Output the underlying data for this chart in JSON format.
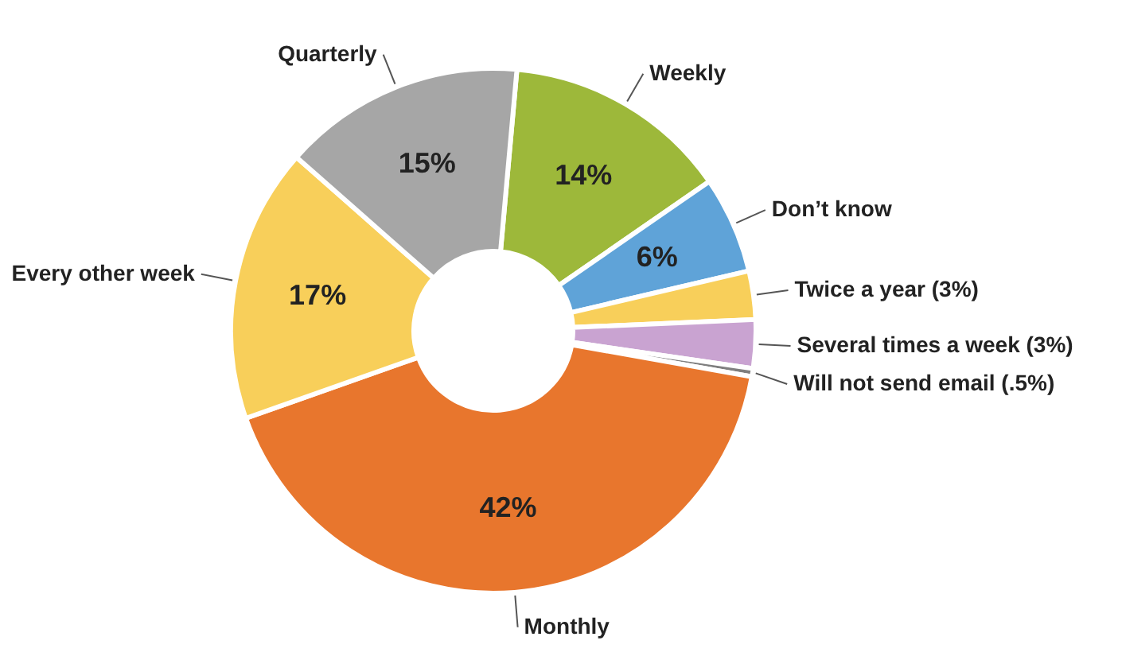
{
  "chart_data": {
    "type": "donut",
    "categories": [
      "Weekly",
      "Don’t know",
      "Twice a year (3%)",
      "Several times a week (3%)",
      "Will not send email (.5%)",
      "Monthly",
      "Every other week",
      "Quarterly"
    ],
    "values": [
      14,
      6,
      3,
      3,
      0.5,
      42,
      17,
      15
    ],
    "colors": [
      "#9db83a",
      "#5fa3d8",
      "#f8cf5a",
      "#c9a3d1",
      "#7f7f7f",
      "#e8762d",
      "#f8cf5a",
      "#a6a6a6"
    ],
    "value_labels": [
      "14%",
      "6%",
      null,
      null,
      null,
      "42%",
      "17%",
      "15%"
    ]
  }
}
